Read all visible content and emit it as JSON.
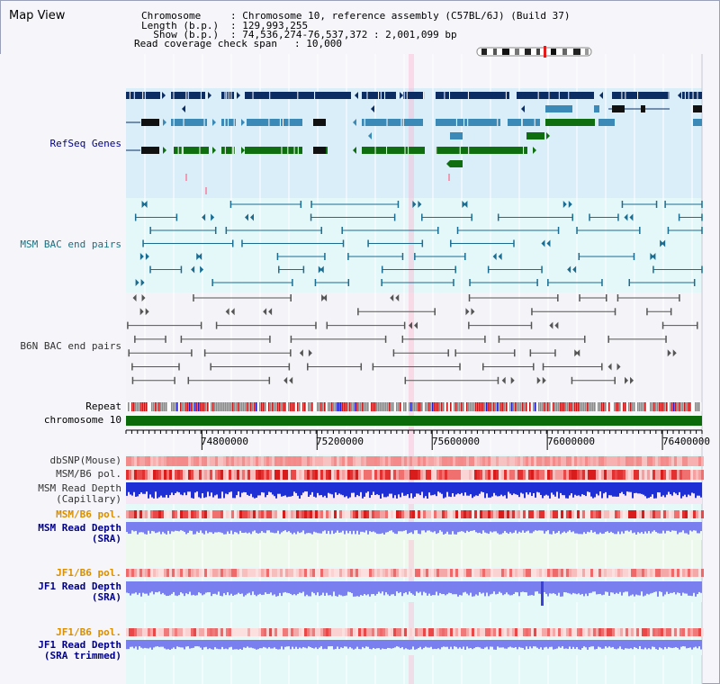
{
  "header": {
    "view_title": "Map View",
    "chromosome_label": "Chromosome   ",
    "chromosome_value": ": Chromosome 10, reference assembly (C57BL/6J) (Build 37)",
    "length_label": "Length (b.p.)",
    "length_value": ": 129,993,255",
    "show_label": "  Show (b.p.)",
    "show_value": ": 74,536,274-76,537,372 : 2,001,099 bp",
    "coverage_label": "Read coverage check span",
    "coverage_value": ": 10,000"
  },
  "tracks": {
    "refseq": "RefSeq Genes",
    "msm_bac": "MSM BAC end pairs",
    "b6n_bac": "B6N BAC end pairs",
    "repeat": "Repeat",
    "chromosome": "chromosome 10",
    "dbsnp": "dbSNP(Mouse)",
    "msm_b6_pol": "MSM/B6 pol.",
    "msm_depth_cap_1": "MSM Read Depth",
    "msm_depth_cap_2": "(Capillary)",
    "msm_b6_pol_2": "MSM/B6 pol.",
    "msm_depth_sra_1": "MSM Read Depth",
    "msm_depth_sra_2": "(SRA)",
    "jf1_b6_pol": "JF1/B6 pol.",
    "jf1_depth_sra_1": "JF1 Read Depth",
    "jf1_depth_sra_2": "(SRA)",
    "jf1_b6_pol_2": "JF1/B6 pol.",
    "jf1_depth_trim_1": "JF1 Read Depth",
    "jf1_depth_trim_2": "(SRA trimmed)"
  },
  "axis": {
    "start": 74536274,
    "end": 76537372,
    "ticks": [
      "74800000",
      "75200000",
      "75600000",
      "76000000",
      "76400000"
    ]
  },
  "colors": {
    "refseq_dark": "#0c2d63",
    "refseq_mid": "#3b89b7",
    "refseq_green": "#0f6e0f",
    "msm_bac": "#1a6d91",
    "b6n_bac": "#555555",
    "chromosome_bar": "#0b6b0b",
    "depth_blue": "#1f2fd6",
    "depth_light": "#7a7ff0",
    "label_blue": "#00008b",
    "label_teal": "#1c6f81",
    "label_orange": "#d98f00",
    "label_dark": "#333333"
  }
}
